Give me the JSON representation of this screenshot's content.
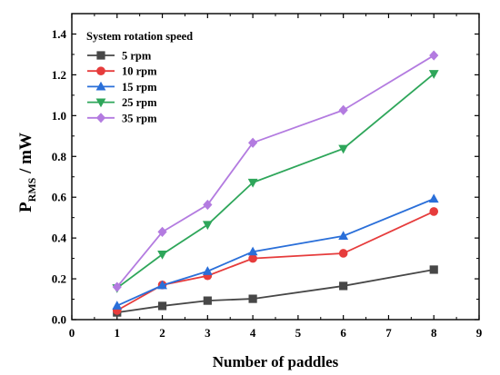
{
  "chart_data": {
    "type": "line",
    "title": "",
    "xlabel": "Number of paddles",
    "ylabel_main": "P",
    "ylabel_sub": "RMS",
    "ylabel_unit": " / mW",
    "xlim": [
      0,
      9
    ],
    "ylim": [
      0,
      1.5
    ],
    "xticks": [
      "0",
      "1",
      "2",
      "3",
      "4",
      "5",
      "6",
      "7",
      "8",
      "9"
    ],
    "yticks": [
      "0.0",
      "0.2",
      "0.4",
      "0.6",
      "0.8",
      "1.0",
      "1.2",
      "1.4"
    ],
    "grid": false,
    "legend": {
      "title": "System rotation speed",
      "position": "top-left"
    },
    "x": [
      1,
      2,
      3,
      4,
      6,
      8
    ],
    "series": [
      {
        "name": "5 rpm",
        "color": "#474747",
        "marker": "square",
        "values": [
          0.035,
          0.067,
          0.093,
          0.102,
          0.165,
          0.245
        ]
      },
      {
        "name": "10 rpm",
        "color": "#e63c3c",
        "marker": "circle",
        "values": [
          0.045,
          0.17,
          0.215,
          0.3,
          0.325,
          0.53
        ]
      },
      {
        "name": "15 rpm",
        "color": "#2a6fd9",
        "marker": "triangle-up",
        "values": [
          0.068,
          0.168,
          0.237,
          0.333,
          0.41,
          0.592
        ]
      },
      {
        "name": "25 rpm",
        "color": "#2ea65a",
        "marker": "triangle-down",
        "values": [
          0.155,
          0.32,
          0.465,
          0.672,
          0.838,
          1.205
        ]
      },
      {
        "name": "35 rpm",
        "color": "#b37be0",
        "marker": "diamond",
        "values": [
          0.16,
          0.43,
          0.563,
          0.867,
          1.027,
          1.295
        ]
      }
    ]
  }
}
